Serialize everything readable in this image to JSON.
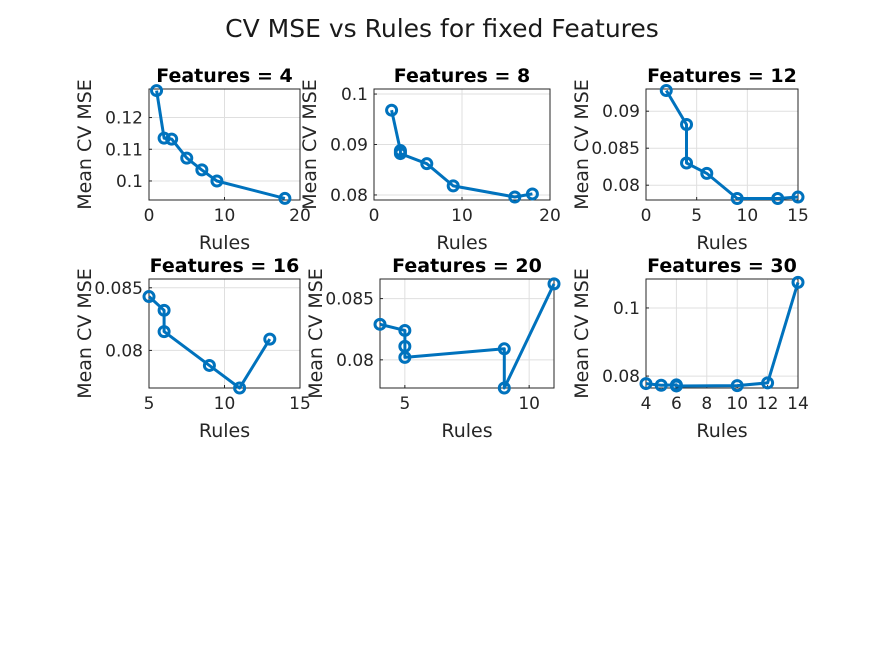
{
  "figure_title": "CV MSE vs Rules for fixed Features",
  "colors": {
    "series": "#0072BD"
  },
  "chart_data": [
    {
      "type": "line",
      "title": "Features = 4",
      "xlabel": "Rules",
      "ylabel": "Mean CV MSE",
      "xlim": [
        0,
        20
      ],
      "ylim": [
        0.094,
        0.129
      ],
      "xticks": [
        0,
        10,
        20
      ],
      "xtick_labels": [
        "0",
        "10",
        "20"
      ],
      "yticks": [
        0.1,
        0.11,
        0.12
      ],
      "ytick_labels": [
        "0.1",
        "0.11",
        "0.12"
      ],
      "grid": true,
      "x": [
        1,
        2,
        3,
        5,
        7,
        9,
        18
      ],
      "y": [
        0.1285,
        0.1135,
        0.1132,
        0.1072,
        0.1035,
        0.1,
        0.0945
      ]
    },
    {
      "type": "line",
      "title": "Features = 8",
      "xlabel": "Rules",
      "ylabel": "Mean CV MSE",
      "xlim": [
        0,
        20
      ],
      "ylim": [
        0.079,
        0.101
      ],
      "xticks": [
        0,
        10,
        20
      ],
      "xtick_labels": [
        "0",
        "10",
        "20"
      ],
      "yticks": [
        0.08,
        0.09,
        0.1
      ],
      "ytick_labels": [
        "0.08",
        "0.09",
        "0.1"
      ],
      "grid": true,
      "x": [
        2,
        3,
        3,
        3,
        6,
        9,
        16,
        18
      ],
      "y": [
        0.0968,
        0.0888,
        0.0885,
        0.0882,
        0.0862,
        0.0818,
        0.0796,
        0.0802
      ]
    },
    {
      "type": "line",
      "title": "Features = 12",
      "xlabel": "Rules",
      "ylabel": "Mean CV MSE",
      "xlim": [
        0,
        15
      ],
      "ylim": [
        0.078,
        0.093
      ],
      "xticks": [
        0,
        5,
        10,
        15
      ],
      "xtick_labels": [
        "0",
        "5",
        "10",
        "15"
      ],
      "yticks": [
        0.08,
        0.085,
        0.09
      ],
      "ytick_labels": [
        "0.08",
        "0.085",
        "0.09"
      ],
      "grid": true,
      "x": [
        2,
        4,
        4,
        6,
        9,
        13,
        15
      ],
      "y": [
        0.0928,
        0.0882,
        0.083,
        0.0816,
        0.0782,
        0.0782,
        0.0784
      ]
    },
    {
      "type": "line",
      "title": "Features = 16",
      "xlabel": "Rules",
      "ylabel": "Mean CV MSE",
      "xlim": [
        5,
        15
      ],
      "ylim": [
        0.077,
        0.0857
      ],
      "xticks": [
        5,
        10,
        15
      ],
      "xtick_labels": [
        "5",
        "10",
        "15"
      ],
      "yticks": [
        0.08,
        0.085
      ],
      "ytick_labels": [
        "0.08",
        "0.085"
      ],
      "grid": true,
      "x": [
        5,
        6,
        6,
        9,
        11,
        13
      ],
      "y": [
        0.0843,
        0.0832,
        0.0815,
        0.0788,
        0.077,
        0.0809
      ]
    },
    {
      "type": "line",
      "title": "Features = 20",
      "xlabel": "Rules",
      "ylabel": "Mean CV MSE",
      "xlim": [
        4,
        11
      ],
      "ylim": [
        0.0777,
        0.0866
      ],
      "xticks": [
        5,
        10
      ],
      "xtick_labels": [
        "5",
        "10"
      ],
      "yticks": [
        0.08,
        0.085
      ],
      "ytick_labels": [
        "0.08",
        "0.085"
      ],
      "grid": true,
      "x": [
        4,
        5,
        5,
        5,
        9,
        9,
        11
      ],
      "y": [
        0.0829,
        0.0824,
        0.0811,
        0.0802,
        0.0809,
        0.0777,
        0.0862
      ]
    },
    {
      "type": "line",
      "title": "Features = 30",
      "xlabel": "Rules",
      "ylabel": "Mean CV MSE",
      "xlim": [
        4,
        14
      ],
      "ylim": [
        0.0765,
        0.1085
      ],
      "xticks": [
        4,
        6,
        8,
        10,
        12,
        14
      ],
      "xtick_labels": [
        "4",
        "6",
        "8",
        "10",
        "12",
        "14"
      ],
      "yticks": [
        0.08,
        0.1
      ],
      "ytick_labels": [
        "0.08",
        "0.1"
      ],
      "grid": true,
      "x": [
        4,
        5,
        6,
        6,
        10,
        12,
        14
      ],
      "y": [
        0.0778,
        0.0773,
        0.0774,
        0.0771,
        0.0772,
        0.078,
        0.1075
      ]
    }
  ]
}
